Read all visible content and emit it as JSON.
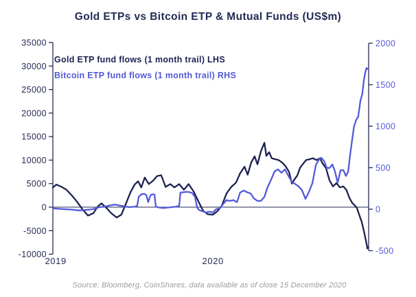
{
  "title": "Gold ETPs vs Bitcoin ETP & Mutual Funds (US$m)",
  "source": "Source: Bloomberg, CoinShares, data available as of close 15 December 2020",
  "colors": {
    "gold_line": "#1b2150",
    "bitcoin_line": "#5259d8",
    "axis_dark": "#232a54",
    "right_axis_text": "#5259d8",
    "source_gray": "#9b9ba1",
    "background": "#ffffff"
  },
  "chart_data": {
    "type": "line",
    "title": "Gold ETPs vs Bitcoin ETP & Mutual Funds (US$m)",
    "legend_position": "top-left-inside",
    "grid": "zero-line-only",
    "left_axis": {
      "ticks": [
        35000,
        30000,
        25000,
        20000,
        15000,
        10000,
        5000,
        0,
        -5000,
        -10000
      ],
      "max": 35000,
      "min": -10000
    },
    "right_axis": {
      "ticks": [
        2000,
        1500,
        1000,
        500,
        0,
        -500
      ],
      "max": 2000,
      "min": -500
    },
    "x_axis": {
      "labels": [
        {
          "text": "2019",
          "f": 0.009
        },
        {
          "text": "2020",
          "f": 0.507
        }
      ]
    },
    "series": [
      {
        "name": "Gold ETP fund flows (1 month trail) LHS",
        "axis": "left",
        "color": "#1b2150",
        "points": [
          [
            0.0,
            4200
          ],
          [
            0.011,
            4800
          ],
          [
            0.028,
            4300
          ],
          [
            0.043,
            3700
          ],
          [
            0.061,
            2400
          ],
          [
            0.076,
            1200
          ],
          [
            0.093,
            -400
          ],
          [
            0.111,
            -1800
          ],
          [
            0.128,
            -1300
          ],
          [
            0.143,
            200
          ],
          [
            0.154,
            800
          ],
          [
            0.17,
            -200
          ],
          [
            0.185,
            -1300
          ],
          [
            0.202,
            -2200
          ],
          [
            0.217,
            -1600
          ],
          [
            0.233,
            1000
          ],
          [
            0.246,
            3200
          ],
          [
            0.259,
            4800
          ],
          [
            0.27,
            5500
          ],
          [
            0.28,
            4200
          ],
          [
            0.291,
            6300
          ],
          [
            0.304,
            4900
          ],
          [
            0.317,
            5600
          ],
          [
            0.33,
            6600
          ],
          [
            0.343,
            6800
          ],
          [
            0.357,
            4300
          ],
          [
            0.372,
            4900
          ],
          [
            0.385,
            4200
          ],
          [
            0.4,
            4900
          ],
          [
            0.415,
            3700
          ],
          [
            0.43,
            4900
          ],
          [
            0.446,
            3300
          ],
          [
            0.461,
            1200
          ],
          [
            0.476,
            -800
          ],
          [
            0.491,
            -1500
          ],
          [
            0.507,
            -1600
          ],
          [
            0.522,
            -800
          ],
          [
            0.535,
            300
          ],
          [
            0.55,
            2900
          ],
          [
            0.565,
            4300
          ],
          [
            0.58,
            5200
          ],
          [
            0.593,
            7200
          ],
          [
            0.607,
            8600
          ],
          [
            0.617,
            6900
          ],
          [
            0.628,
            9500
          ],
          [
            0.639,
            10800
          ],
          [
            0.648,
            9100
          ],
          [
            0.659,
            11900
          ],
          [
            0.67,
            13700
          ],
          [
            0.676,
            10900
          ],
          [
            0.685,
            11700
          ],
          [
            0.693,
            10400
          ],
          [
            0.704,
            10200
          ],
          [
            0.715,
            10000
          ],
          [
            0.726,
            9500
          ],
          [
            0.737,
            8700
          ],
          [
            0.748,
            7500
          ],
          [
            0.757,
            5000
          ],
          [
            0.765,
            5900
          ],
          [
            0.774,
            6700
          ],
          [
            0.783,
            8400
          ],
          [
            0.791,
            9100
          ],
          [
            0.802,
            10000
          ],
          [
            0.813,
            10200
          ],
          [
            0.824,
            10400
          ],
          [
            0.835,
            10000
          ],
          [
            0.846,
            10400
          ],
          [
            0.854,
            9300
          ],
          [
            0.865,
            8300
          ],
          [
            0.876,
            5700
          ],
          [
            0.887,
            4400
          ],
          [
            0.898,
            5100
          ],
          [
            0.909,
            4200
          ],
          [
            0.92,
            4400
          ],
          [
            0.93,
            3600
          ],
          [
            0.939,
            2000
          ],
          [
            0.948,
            900
          ],
          [
            0.957,
            300
          ],
          [
            0.963,
            -200
          ],
          [
            0.97,
            -1600
          ],
          [
            0.978,
            -3100
          ],
          [
            0.985,
            -5100
          ],
          [
            0.991,
            -7000
          ],
          [
            0.996,
            -8800
          ],
          [
            0.998,
            -8500
          ]
        ]
      },
      {
        "name": "Bitcoin ETP fund flows (1 month trail) RHS",
        "axis": "right",
        "color": "#5259d8",
        "points": [
          [
            0.0,
            10
          ],
          [
            0.017,
            5
          ],
          [
            0.039,
            0
          ],
          [
            0.061,
            -5
          ],
          [
            0.083,
            -15
          ],
          [
            0.104,
            -10
          ],
          [
            0.126,
            0
          ],
          [
            0.148,
            25
          ],
          [
            0.163,
            30
          ],
          [
            0.18,
            45
          ],
          [
            0.196,
            55
          ],
          [
            0.211,
            45
          ],
          [
            0.226,
            35
          ],
          [
            0.241,
            25
          ],
          [
            0.259,
            30
          ],
          [
            0.267,
            40
          ],
          [
            0.272,
            150
          ],
          [
            0.28,
            180
          ],
          [
            0.289,
            185
          ],
          [
            0.296,
            170
          ],
          [
            0.302,
            85
          ],
          [
            0.309,
            165
          ],
          [
            0.315,
            180
          ],
          [
            0.322,
            175
          ],
          [
            0.326,
            30
          ],
          [
            0.337,
            20
          ],
          [
            0.35,
            15
          ],
          [
            0.363,
            20
          ],
          [
            0.376,
            25
          ],
          [
            0.389,
            30
          ],
          [
            0.4,
            40
          ],
          [
            0.404,
            200
          ],
          [
            0.415,
            205
          ],
          [
            0.424,
            210
          ],
          [
            0.433,
            205
          ],
          [
            0.441,
            195
          ],
          [
            0.45,
            150
          ],
          [
            0.457,
            20
          ],
          [
            0.463,
            -10
          ],
          [
            0.474,
            -25
          ],
          [
            0.485,
            -40
          ],
          [
            0.496,
            -30
          ],
          [
            0.507,
            -40
          ],
          [
            0.517,
            0
          ],
          [
            0.528,
            10
          ],
          [
            0.539,
            60
          ],
          [
            0.55,
            110
          ],
          [
            0.561,
            100
          ],
          [
            0.572,
            110
          ],
          [
            0.583,
            85
          ],
          [
            0.593,
            200
          ],
          [
            0.604,
            225
          ],
          [
            0.615,
            205
          ],
          [
            0.626,
            190
          ],
          [
            0.637,
            130
          ],
          [
            0.648,
            100
          ],
          [
            0.659,
            100
          ],
          [
            0.67,
            150
          ],
          [
            0.68,
            265
          ],
          [
            0.691,
            355
          ],
          [
            0.702,
            455
          ],
          [
            0.713,
            480
          ],
          [
            0.724,
            440
          ],
          [
            0.735,
            480
          ],
          [
            0.746,
            400
          ],
          [
            0.757,
            330
          ],
          [
            0.767,
            305
          ],
          [
            0.778,
            275
          ],
          [
            0.789,
            230
          ],
          [
            0.8,
            125
          ],
          [
            0.811,
            210
          ],
          [
            0.822,
            315
          ],
          [
            0.833,
            535
          ],
          [
            0.843,
            600
          ],
          [
            0.85,
            620
          ],
          [
            0.859,
            580
          ],
          [
            0.867,
            500
          ],
          [
            0.876,
            495
          ],
          [
            0.885,
            540
          ],
          [
            0.893,
            460
          ],
          [
            0.902,
            320
          ],
          [
            0.911,
            470
          ],
          [
            0.92,
            470
          ],
          [
            0.928,
            400
          ],
          [
            0.935,
            450
          ],
          [
            0.941,
            645
          ],
          [
            0.948,
            845
          ],
          [
            0.954,
            1000
          ],
          [
            0.961,
            1080
          ],
          [
            0.967,
            1115
          ],
          [
            0.974,
            1305
          ],
          [
            0.98,
            1390
          ],
          [
            0.985,
            1555
          ],
          [
            0.989,
            1640
          ],
          [
            0.993,
            1700
          ],
          [
            0.998,
            1690
          ]
        ]
      }
    ]
  }
}
